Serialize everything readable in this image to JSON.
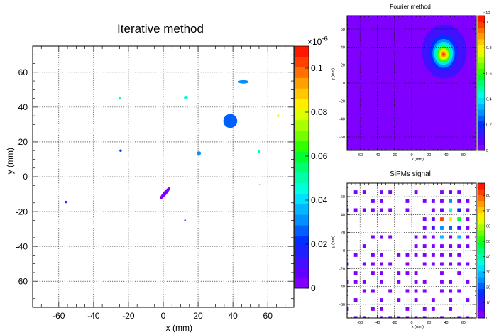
{
  "panels": {
    "iterative": {
      "title": "Iterative method"
    },
    "fourier": {
      "title": "Fourier method"
    },
    "sipm": {
      "title": "SiPMs signal"
    }
  },
  "chart_data": [
    {
      "type": "heatmap",
      "title": "Iterative method",
      "xlabel": "x (mm)",
      "ylabel": "y (mm)",
      "xlim": [
        -75,
        75
      ],
      "ylim": [
        -75,
        75
      ],
      "grid": true,
      "xticks": [
        -60,
        -40,
        -20,
        0,
        20,
        40,
        60
      ],
      "yticks": [
        -60,
        -40,
        -20,
        0,
        20,
        40,
        60
      ],
      "colorbar": {
        "range": [
          0,
          0.11
        ],
        "exponent_label": "×10",
        "exponent": "-6",
        "ticks": [
          0,
          0.02,
          0.04,
          0.06,
          0.08,
          0.1
        ],
        "tick_labels": [
          "0",
          "0.02",
          "0.04",
          "0.06",
          "0.08",
          "0.1"
        ]
      },
      "spots": [
        {
          "x": 38.5,
          "y": 32,
          "rx": 4,
          "ry": 4,
          "value": 0.026
        },
        {
          "x": 1,
          "y": -9.5,
          "rx": 4.5,
          "ry": 1.1,
          "angle": -50,
          "value": 0.004
        },
        {
          "x": 46,
          "y": 54.5,
          "rx": 3,
          "ry": 1,
          "value": 0.033
        },
        {
          "x": 13,
          "y": 45.5,
          "rx": 1.2,
          "ry": 1,
          "value": 0.046
        },
        {
          "x": 20.5,
          "y": 13.5,
          "rx": 1.2,
          "ry": 1,
          "value": 0.031
        },
        {
          "x": -25,
          "y": 45,
          "rx": 0.7,
          "ry": 0.7,
          "value": 0.052
        },
        {
          "x": -24.5,
          "y": 15,
          "rx": 0.7,
          "ry": 0.7,
          "value": 0.02
        },
        {
          "x": 66,
          "y": 35,
          "rx": 0.7,
          "ry": 0.7,
          "value": 0.085
        },
        {
          "x": 55,
          "y": 14.5,
          "rx": 0.6,
          "ry": 1,
          "value": 0.05
        },
        {
          "x": 55.5,
          "y": -4.5,
          "rx": 0.5,
          "ry": 0.5,
          "value": 0.045
        },
        {
          "x": -56,
          "y": -14.5,
          "rx": 0.7,
          "ry": 0.7,
          "value": 0.006
        },
        {
          "x": 12.5,
          "y": -25,
          "rx": 0.5,
          "ry": 0.5,
          "value": 0.003
        }
      ]
    },
    {
      "type": "heatmap",
      "title": "Fourier method",
      "xlabel": "x (mm)",
      "ylabel": "y (mm)",
      "xlim": [
        -75,
        75
      ],
      "ylim": [
        -75,
        75
      ],
      "grid": true,
      "xticks": [
        -60,
        -40,
        -20,
        0,
        20,
        40,
        60
      ],
      "yticks": [
        -60,
        -40,
        -20,
        0,
        20,
        40,
        60
      ],
      "colorbar": {
        "range": [
          0,
          1.05
        ],
        "exponent_label": "×10",
        "exponent": "",
        "ticks": [
          0,
          0.2,
          0.4,
          0.6,
          0.8,
          1
        ],
        "tick_labels": [
          "0",
          "0.2",
          "0.4",
          "0.6",
          "0.8",
          "1"
        ]
      },
      "peak": {
        "x": 37,
        "y": 32,
        "value": 1.0
      },
      "contours": [
        {
          "value": 0.04,
          "rx": 34,
          "ry": 38,
          "cx": 38,
          "cy": 36
        },
        {
          "value": 0.1,
          "rx": 26,
          "ry": 30,
          "cx": 38,
          "cy": 35
        },
        {
          "value": 0.2,
          "rx": 16,
          "ry": 20,
          "cx": 37,
          "cy": 34
        },
        {
          "value": 0.3,
          "rx": 13,
          "ry": 16,
          "cx": 37,
          "cy": 33
        },
        {
          "value": 0.4,
          "rx": 11,
          "ry": 13,
          "cx": 37,
          "cy": 33
        },
        {
          "value": 0.5,
          "rx": 9,
          "ry": 11,
          "cx": 37,
          "cy": 32.5
        },
        {
          "value": 0.6,
          "rx": 7.5,
          "ry": 9,
          "cx": 37,
          "cy": 32
        },
        {
          "value": 0.7,
          "rx": 6,
          "ry": 7,
          "cx": 37,
          "cy": 32
        },
        {
          "value": 0.8,
          "rx": 4.5,
          "ry": 5,
          "cx": 37,
          "cy": 32
        },
        {
          "value": 0.9,
          "rx": 3,
          "ry": 3.5,
          "cx": 37,
          "cy": 32
        },
        {
          "value": 1.0,
          "rx": 1.6,
          "ry": 1.8,
          "cx": 37,
          "cy": 32
        }
      ]
    },
    {
      "type": "heatmap",
      "title": "SiPMs signal",
      "xlabel": "x (mm)",
      "ylabel": "y (mm)",
      "xlim": [
        -75,
        75
      ],
      "ylim": [
        -75,
        75
      ],
      "grid": true,
      "xticks": [
        -60,
        -40,
        -20,
        0,
        20,
        40,
        60
      ],
      "yticks": [
        -60,
        -40,
        -20,
        0,
        20,
        40,
        60
      ],
      "colorbar": {
        "range": [
          0,
          88
        ],
        "ticks": [
          0,
          10,
          20,
          30,
          40,
          50,
          60,
          70,
          80
        ],
        "tick_labels": [
          "0",
          "10",
          "20",
          "30",
          "40",
          "50",
          "60",
          "70",
          "80"
        ]
      },
      "sensor_size_mm": 4,
      "cells": [
        [
          -65,
          65,
          1
        ],
        [
          -55,
          65,
          1
        ],
        [
          -35,
          65,
          1
        ],
        [
          -25,
          65,
          1
        ],
        [
          5,
          65,
          1
        ],
        [
          35,
          65,
          1
        ],
        [
          45,
          65,
          1
        ],
        [
          55,
          65,
          1
        ],
        [
          -45,
          55,
          1
        ],
        [
          -35,
          55,
          1
        ],
        [
          -5,
          55,
          1
        ],
        [
          15,
          55,
          1
        ],
        [
          25,
          55,
          1
        ],
        [
          35,
          55,
          1
        ],
        [
          45,
          55,
          25
        ],
        [
          55,
          55,
          1
        ],
        [
          65,
          55,
          1
        ],
        [
          -75,
          45,
          1
        ],
        [
          -65,
          45,
          1
        ],
        [
          -55,
          45,
          1
        ],
        [
          -45,
          45,
          1
        ],
        [
          -35,
          45,
          1
        ],
        [
          -25,
          45,
          1
        ],
        [
          -5,
          45,
          1
        ],
        [
          25,
          45,
          1
        ],
        [
          35,
          45,
          6
        ],
        [
          45,
          45,
          38
        ],
        [
          55,
          45,
          12
        ],
        [
          65,
          45,
          1
        ],
        [
          15,
          35,
          3
        ],
        [
          25,
          35,
          4
        ],
        [
          35,
          35,
          82
        ],
        [
          45,
          35,
          68
        ],
        [
          55,
          35,
          48
        ],
        [
          65,
          35,
          1
        ],
        [
          15,
          25,
          3
        ],
        [
          25,
          25,
          10
        ],
        [
          35,
          25,
          23
        ],
        [
          45,
          25,
          22
        ],
        [
          55,
          25,
          8
        ],
        [
          65,
          25,
          1
        ],
        [
          -45,
          15,
          1
        ],
        [
          -35,
          15,
          1
        ],
        [
          -25,
          15,
          1
        ],
        [
          5,
          15,
          1
        ],
        [
          15,
          15,
          1
        ],
        [
          25,
          15,
          2
        ],
        [
          35,
          15,
          28
        ],
        [
          45,
          15,
          2
        ],
        [
          55,
          15,
          28
        ],
        [
          65,
          15,
          1
        ],
        [
          -55,
          5,
          1
        ],
        [
          5,
          5,
          1
        ],
        [
          15,
          5,
          1
        ],
        [
          25,
          5,
          1
        ],
        [
          35,
          5,
          1
        ],
        [
          45,
          5,
          1
        ],
        [
          55,
          5,
          1
        ],
        [
          65,
          5,
          1
        ],
        [
          -65,
          -5,
          1
        ],
        [
          -45,
          -5,
          1
        ],
        [
          -35,
          -5,
          1
        ],
        [
          -15,
          -5,
          1
        ],
        [
          -5,
          -5,
          1
        ],
        [
          5,
          -5,
          1
        ],
        [
          15,
          -5,
          1
        ],
        [
          25,
          -5,
          1
        ],
        [
          35,
          -5,
          1
        ],
        [
          45,
          -5,
          1
        ],
        [
          55,
          -5,
          1
        ],
        [
          -75,
          -15,
          1
        ],
        [
          -55,
          -15,
          1
        ],
        [
          -45,
          -15,
          1
        ],
        [
          -35,
          -15,
          1
        ],
        [
          -25,
          -15,
          1
        ],
        [
          -5,
          -15,
          1
        ],
        [
          15,
          -15,
          1
        ],
        [
          25,
          -15,
          1
        ],
        [
          35,
          -15,
          1
        ],
        [
          45,
          -15,
          1
        ],
        [
          55,
          -15,
          1
        ],
        [
          65,
          -15,
          1
        ],
        [
          -65,
          -25,
          1
        ],
        [
          -45,
          -25,
          1
        ],
        [
          -35,
          -25,
          1
        ],
        [
          -15,
          -25,
          1
        ],
        [
          -5,
          -25,
          1
        ],
        [
          5,
          -25,
          1
        ],
        [
          35,
          -25,
          1
        ],
        [
          55,
          -25,
          1
        ],
        [
          -75,
          -35,
          1
        ],
        [
          -65,
          -35,
          1
        ],
        [
          -55,
          -35,
          1
        ],
        [
          -35,
          -35,
          1
        ],
        [
          -15,
          -35,
          1
        ],
        [
          5,
          -35,
          1
        ],
        [
          15,
          -35,
          1
        ],
        [
          35,
          -35,
          1
        ],
        [
          45,
          -35,
          1
        ],
        [
          65,
          -35,
          1
        ],
        [
          -55,
          -45,
          1
        ],
        [
          -45,
          -45,
          1
        ],
        [
          -25,
          -45,
          1
        ],
        [
          -5,
          -45,
          1
        ],
        [
          5,
          -45,
          1
        ],
        [
          15,
          -45,
          1
        ],
        [
          35,
          -45,
          1
        ],
        [
          45,
          -45,
          1
        ],
        [
          55,
          -45,
          1
        ],
        [
          -65,
          -55,
          1
        ],
        [
          -35,
          -55,
          1
        ],
        [
          -15,
          -55,
          1
        ],
        [
          5,
          -55,
          1
        ],
        [
          25,
          -55,
          1
        ],
        [
          45,
          -55,
          1
        ],
        [
          65,
          -55,
          1
        ],
        [
          -75,
          -65,
          1
        ],
        [
          -45,
          -65,
          1
        ],
        [
          -35,
          -65,
          1
        ],
        [
          -5,
          -65,
          1
        ],
        [
          15,
          -65,
          1
        ],
        [
          25,
          -65,
          1
        ],
        [
          45,
          -65,
          1
        ],
        [
          -65,
          -75,
          1
        ],
        [
          -55,
          -75,
          1
        ],
        [
          -35,
          -75,
          1
        ],
        [
          -25,
          -75,
          1
        ],
        [
          -15,
          -75,
          1
        ],
        [
          -5,
          -75,
          1
        ],
        [
          5,
          -75,
          1
        ],
        [
          15,
          -75,
          1
        ],
        [
          35,
          -75,
          1
        ],
        [
          55,
          -75,
          1
        ],
        [
          65,
          -75,
          1
        ]
      ]
    }
  ]
}
